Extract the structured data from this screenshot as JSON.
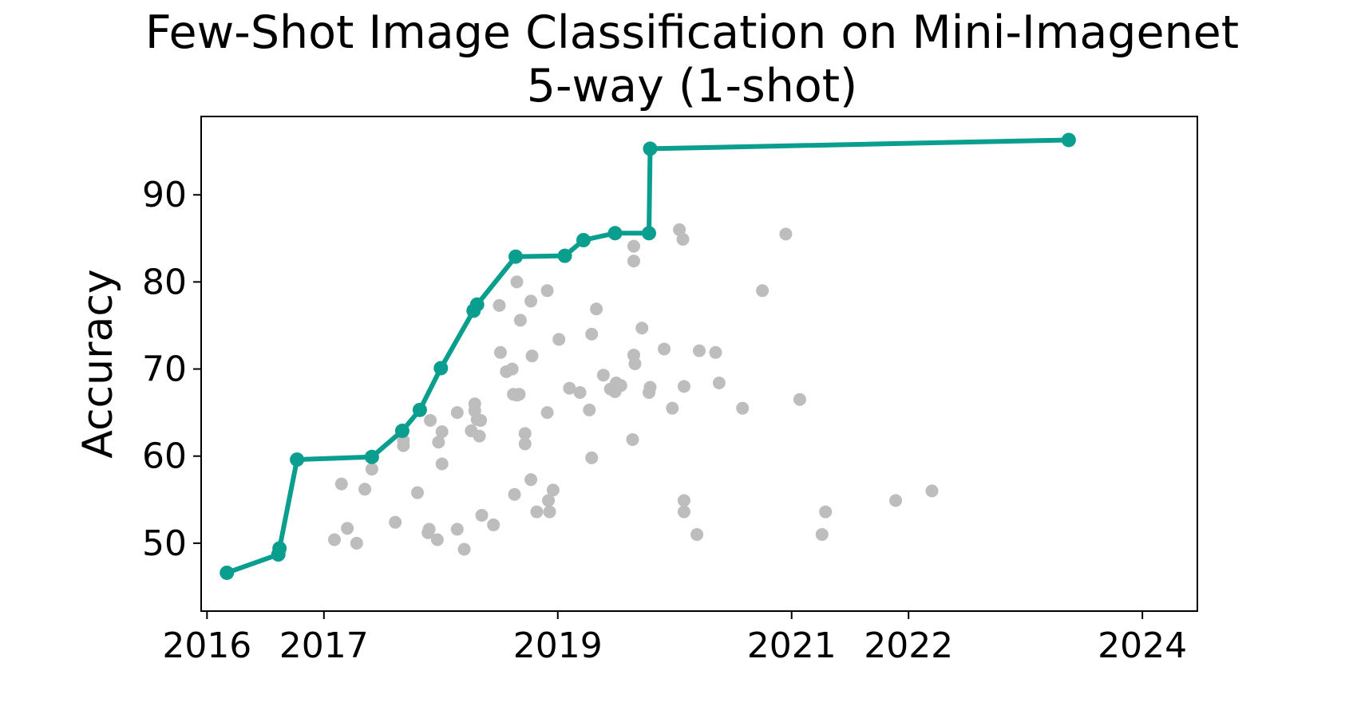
{
  "chart_data": {
    "type": "scatter",
    "title": "Few-Shot Image Classification on Mini-Imagenet 5-way (1-shot)",
    "title_lines": [
      "Few-Shot Image Classification on Mini-Imagenet",
      "5-way (1-shot)"
    ],
    "xlabel": "",
    "ylabel": "Accuracy",
    "xlim": [
      2015.95,
      2024.47
    ],
    "ylim": [
      42.2,
      99.0
    ],
    "x_ticks": [
      2016,
      2017,
      2019,
      2021,
      2022,
      2024
    ],
    "x_tick_labels": [
      "2016",
      "2017",
      "2019",
      "2021",
      "2022",
      "2024"
    ],
    "y_ticks": [
      50,
      60,
      70,
      80,
      90
    ],
    "y_tick_labels": [
      "50",
      "60",
      "70",
      "80",
      "90"
    ],
    "grid": false,
    "colors": {
      "frontier": "#0a9e8f",
      "others": "#bdbdbd"
    },
    "series": [
      {
        "role": "frontier",
        "x": [
          2016.17,
          2016.61,
          2016.62,
          2016.77,
          2017.41,
          2017.67,
          2017.82,
          2018.0,
          2018.28,
          2018.31,
          2018.64,
          2019.06,
          2019.22,
          2019.49,
          2019.78,
          2019.79,
          2023.37
        ],
        "y": [
          46.6,
          48.7,
          49.4,
          59.6,
          59.9,
          62.9,
          65.3,
          70.1,
          76.7,
          77.4,
          82.9,
          83.0,
          84.8,
          85.6,
          85.6,
          95.3,
          96.3
        ]
      },
      {
        "role": "others",
        "x": [
          2017.09,
          2017.15,
          2017.2,
          2017.28,
          2017.35,
          2017.41,
          2017.61,
          2017.68,
          2017.68,
          2017.8,
          2017.89,
          2017.9,
          2017.91,
          2017.97,
          2017.98,
          2018.01,
          2018.01,
          2018.14,
          2018.14,
          2018.2,
          2018.26,
          2018.29,
          2018.29,
          2018.31,
          2018.33,
          2018.34,
          2018.35,
          2018.45,
          2018.5,
          2018.51,
          2018.56,
          2018.61,
          2018.62,
          2018.63,
          2018.65,
          2018.65,
          2018.67,
          2018.68,
          2018.72,
          2018.72,
          2018.77,
          2018.77,
          2018.78,
          2018.82,
          2018.91,
          2018.91,
          2018.92,
          2018.93,
          2018.96,
          2019.01,
          2019.1,
          2019.19,
          2019.27,
          2019.29,
          2019.29,
          2019.33,
          2019.39,
          2019.45,
          2019.49,
          2019.5,
          2019.54,
          2019.64,
          2019.65,
          2019.65,
          2019.65,
          2019.66,
          2019.72,
          2019.78,
          2019.79,
          2019.91,
          2019.98,
          2020.04,
          2020.07,
          2020.08,
          2020.08,
          2020.08,
          2020.19,
          2020.21,
          2020.35,
          2020.38,
          2020.58,
          2020.75,
          2020.95,
          2021.07,
          2021.26,
          2021.29,
          2021.89,
          2022.2
        ],
        "y": [
          50.4,
          56.8,
          51.7,
          50.0,
          56.2,
          58.5,
          52.4,
          61.8,
          61.2,
          55.8,
          51.2,
          51.6,
          64.1,
          50.4,
          61.6,
          59.1,
          62.8,
          65.0,
          51.6,
          49.3,
          62.9,
          66.0,
          65.2,
          64.2,
          62.3,
          64.1,
          53.2,
          52.1,
          77.3,
          71.9,
          69.7,
          70.0,
          67.1,
          55.6,
          67.0,
          80.0,
          67.1,
          75.6,
          61.4,
          62.6,
          77.8,
          57.3,
          71.5,
          53.6,
          65.0,
          79.0,
          54.9,
          53.6,
          56.1,
          73.4,
          67.8,
          67.3,
          65.3,
          59.8,
          74.0,
          76.9,
          69.3,
          67.7,
          67.4,
          68.4,
          68.1,
          61.9,
          84.1,
          82.4,
          71.6,
          70.6,
          74.7,
          67.3,
          67.9,
          72.3,
          65.5,
          86.0,
          84.9,
          68.0,
          54.9,
          53.6,
          51.0,
          72.1,
          71.9,
          68.4,
          65.5,
          79.0,
          85.5,
          66.5,
          51.0,
          53.6,
          54.9,
          56.0
        ]
      }
    ]
  }
}
